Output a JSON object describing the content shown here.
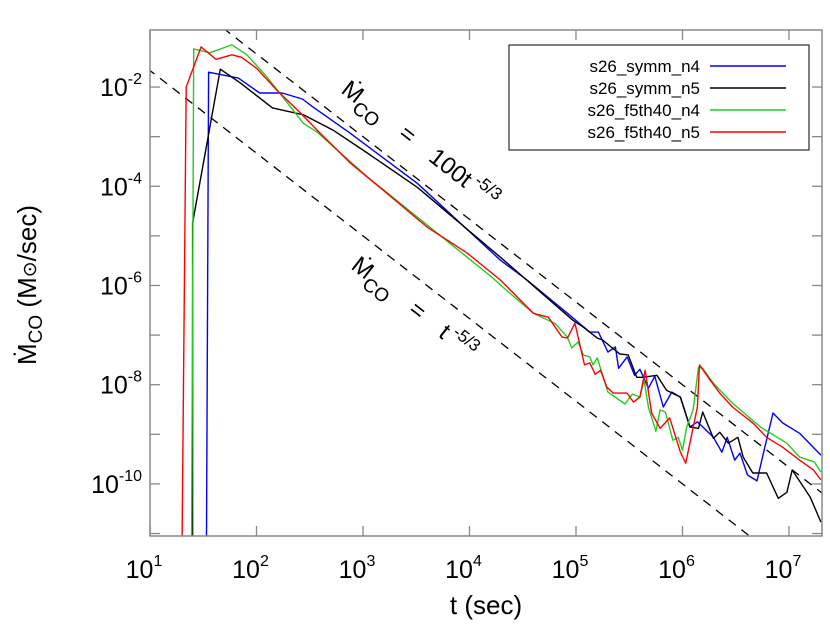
{
  "chart_data": {
    "type": "line",
    "title": "",
    "xlabel": "t (sec)",
    "ylabel_parts": {
      "symbol": "Ṁ",
      "sub": "CO",
      "rest": " (M",
      "sun": "⊙",
      "unit": "/sec)"
    },
    "xscale": "log",
    "yscale": "log",
    "xlim_log10": [
      1,
      7.31
    ],
    "ylim_log10": [
      -11.05,
      -0.85
    ],
    "grid": false,
    "legend_placement": "top-right",
    "x_ticks": [
      {
        "base": "10",
        "exp": "1",
        "log10": 1
      },
      {
        "base": "10",
        "exp": "2",
        "log10": 2
      },
      {
        "base": "10",
        "exp": "3",
        "log10": 3
      },
      {
        "base": "10",
        "exp": "4",
        "log10": 4
      },
      {
        "base": "10",
        "exp": "5",
        "log10": 5
      },
      {
        "base": "10",
        "exp": "6",
        "log10": 6
      },
      {
        "base": "10",
        "exp": "7",
        "log10": 7
      }
    ],
    "y_ticks": [
      {
        "base": "10",
        "exp": "-2",
        "log10": -2
      },
      {
        "base": "10",
        "exp": "-4",
        "log10": -4
      },
      {
        "base": "10",
        "exp": "-6",
        "log10": -6
      },
      {
        "base": "10",
        "exp": "-8",
        "log10": -8
      },
      {
        "base": "10",
        "exp": "-10",
        "log10": -10
      }
    ],
    "y_minor_ticks_log10": [
      -3,
      -5,
      -7,
      -9,
      -11
    ],
    "reference_lines": [
      {
        "coef": 100,
        "exponent": -1.6667,
        "label": {
          "symbol": "Ṁ",
          "sub": "CO",
          "eq": "=",
          "body": "100t",
          "sup": "-5/3"
        }
      },
      {
        "coef": 1,
        "exponent": -1.6667,
        "label": {
          "symbol": "Ṁ",
          "sub": "CO",
          "eq": "=",
          "body": "t",
          "sup": "-5/3"
        }
      }
    ],
    "series": [
      {
        "name": "s26_symm_n4",
        "color": "#0000ff",
        "log10_points": [
          [
            1.53,
            -11.5
          ],
          [
            1.55,
            -1.7
          ],
          [
            1.83,
            -1.82
          ],
          [
            2.03,
            -2.12
          ],
          [
            2.24,
            -2.12
          ],
          [
            2.43,
            -2.24
          ],
          [
            2.53,
            -2.4
          ],
          [
            2.88,
            -2.93
          ],
          [
            3.51,
            -3.94
          ],
          [
            4.29,
            -5.49
          ],
          [
            4.54,
            -5.89
          ],
          [
            4.92,
            -6.56
          ],
          [
            5.13,
            -6.94
          ],
          [
            5.21,
            -6.94
          ],
          [
            5.3,
            -7.34
          ],
          [
            5.37,
            -7.24
          ],
          [
            5.4,
            -7.67
          ],
          [
            5.48,
            -7.44
          ],
          [
            5.55,
            -7.81
          ],
          [
            5.6,
            -7.69
          ],
          [
            5.68,
            -8.07
          ],
          [
            5.74,
            -7.83
          ],
          [
            5.82,
            -8.45
          ],
          [
            5.9,
            -8.15
          ],
          [
            5.98,
            -8.25
          ],
          [
            6.07,
            -8.85
          ],
          [
            6.14,
            -8.75
          ],
          [
            6.19,
            -8.85
          ],
          [
            6.29,
            -9.06
          ],
          [
            6.37,
            -9.36
          ],
          [
            6.42,
            -9.06
          ],
          [
            6.49,
            -9.52
          ],
          [
            6.54,
            -9.38
          ],
          [
            6.61,
            -9.82
          ],
          [
            6.7,
            -9.94
          ],
          [
            6.76,
            -9.38
          ],
          [
            6.85,
            -8.57
          ],
          [
            6.94,
            -8.77
          ],
          [
            7.1,
            -8.98
          ],
          [
            7.3,
            -9.42
          ]
        ]
      },
      {
        "name": "s26_symm_n5",
        "color": "#000000",
        "log10_points": [
          [
            1.4,
            -11.5
          ],
          [
            1.4,
            -4.74
          ],
          [
            1.66,
            -1.64
          ],
          [
            1.85,
            -1.92
          ],
          [
            2.15,
            -2.42
          ],
          [
            2.44,
            -2.56
          ],
          [
            2.72,
            -2.87
          ],
          [
            3.04,
            -3.33
          ],
          [
            3.51,
            -4.02
          ],
          [
            4.29,
            -5.43
          ],
          [
            4.97,
            -6.7
          ],
          [
            5.07,
            -6.84
          ],
          [
            5.2,
            -7.06
          ],
          [
            5.25,
            -7.1
          ],
          [
            5.41,
            -7.38
          ],
          [
            5.49,
            -7.4
          ],
          [
            5.57,
            -7.85
          ],
          [
            5.63,
            -7.85
          ],
          [
            5.76,
            -7.81
          ],
          [
            5.85,
            -8.11
          ],
          [
            5.98,
            -8.25
          ],
          [
            6.07,
            -8.85
          ],
          [
            6.15,
            -8.88
          ],
          [
            6.19,
            -8.55
          ],
          [
            6.29,
            -9.08
          ],
          [
            6.35,
            -8.96
          ],
          [
            6.43,
            -9.18
          ],
          [
            6.52,
            -9.06
          ],
          [
            6.57,
            -9.46
          ],
          [
            6.66,
            -9.78
          ],
          [
            6.79,
            -9.78
          ],
          [
            6.9,
            -10.29
          ],
          [
            6.98,
            -10.17
          ],
          [
            7.03,
            -9.72
          ],
          [
            7.2,
            -10.27
          ],
          [
            7.3,
            -10.77
          ]
        ]
      },
      {
        "name": "s26_f5th40_n4",
        "color": "#22cc22",
        "log10_points": [
          [
            1.39,
            -11.5
          ],
          [
            1.41,
            -1.23
          ],
          [
            1.56,
            -1.31
          ],
          [
            1.77,
            -1.15
          ],
          [
            1.91,
            -1.35
          ],
          [
            2.1,
            -1.8
          ],
          [
            2.29,
            -2.32
          ],
          [
            2.44,
            -2.73
          ],
          [
            2.57,
            -2.91
          ],
          [
            3.04,
            -3.81
          ],
          [
            3.66,
            -4.88
          ],
          [
            4.22,
            -5.85
          ],
          [
            4.29,
            -5.99
          ],
          [
            4.6,
            -6.56
          ],
          [
            4.8,
            -6.76
          ],
          [
            4.92,
            -7.04
          ],
          [
            4.96,
            -7.26
          ],
          [
            5.02,
            -7.14
          ],
          [
            5.07,
            -7.4
          ],
          [
            5.13,
            -7.44
          ],
          [
            5.16,
            -7.6
          ],
          [
            5.2,
            -7.46
          ],
          [
            5.3,
            -8.15
          ],
          [
            5.46,
            -8.39
          ],
          [
            5.53,
            -8.19
          ],
          [
            5.6,
            -8.25
          ],
          [
            5.64,
            -7.91
          ],
          [
            5.68,
            -8.45
          ],
          [
            5.75,
            -8.94
          ],
          [
            5.79,
            -8.51
          ],
          [
            5.84,
            -8.55
          ],
          [
            5.91,
            -9.12
          ],
          [
            5.96,
            -9.06
          ],
          [
            6.0,
            -9.32
          ],
          [
            6.04,
            -8.85
          ],
          [
            6.1,
            -8.51
          ],
          [
            6.15,
            -7.65
          ],
          [
            6.19,
            -7.67
          ],
          [
            6.29,
            -7.97
          ],
          [
            6.47,
            -8.37
          ],
          [
            6.73,
            -8.85
          ],
          [
            6.98,
            -9.18
          ],
          [
            7.1,
            -9.46
          ],
          [
            7.24,
            -9.56
          ],
          [
            7.3,
            -9.76
          ]
        ]
      },
      {
        "name": "s26_f5th40_n5",
        "color": "#ff0000",
        "log10_points": [
          [
            1.3,
            -11.5
          ],
          [
            1.34,
            -2.0
          ],
          [
            1.48,
            -1.19
          ],
          [
            1.62,
            -1.44
          ],
          [
            1.77,
            -1.35
          ],
          [
            1.86,
            -1.4
          ],
          [
            2.0,
            -1.62
          ],
          [
            2.19,
            -2.06
          ],
          [
            2.41,
            -2.52
          ],
          [
            2.57,
            -2.87
          ],
          [
            2.88,
            -3.53
          ],
          [
            3.19,
            -4.08
          ],
          [
            3.6,
            -4.82
          ],
          [
            3.98,
            -5.35
          ],
          [
            4.29,
            -5.89
          ],
          [
            4.6,
            -6.56
          ],
          [
            4.74,
            -6.64
          ],
          [
            4.87,
            -7.04
          ],
          [
            4.92,
            -7.06
          ],
          [
            4.99,
            -6.76
          ],
          [
            5.08,
            -7.6
          ],
          [
            5.13,
            -7.56
          ],
          [
            5.18,
            -7.79
          ],
          [
            5.23,
            -7.71
          ],
          [
            5.29,
            -8.05
          ],
          [
            5.35,
            -8.17
          ],
          [
            5.48,
            -8.17
          ],
          [
            5.54,
            -8.35
          ],
          [
            5.6,
            -8.25
          ],
          [
            5.65,
            -7.71
          ],
          [
            5.71,
            -8.57
          ],
          [
            5.79,
            -8.88
          ],
          [
            5.88,
            -8.67
          ],
          [
            5.98,
            -9.36
          ],
          [
            6.03,
            -9.58
          ],
          [
            6.07,
            -9.18
          ],
          [
            6.14,
            -8.45
          ],
          [
            6.16,
            -7.6
          ],
          [
            6.26,
            -7.91
          ],
          [
            6.35,
            -8.17
          ],
          [
            6.47,
            -8.45
          ],
          [
            6.66,
            -8.77
          ],
          [
            6.79,
            -9.06
          ],
          [
            6.94,
            -9.26
          ],
          [
            7.1,
            -9.52
          ],
          [
            7.23,
            -9.72
          ],
          [
            7.3,
            -9.92
          ]
        ]
      }
    ]
  }
}
